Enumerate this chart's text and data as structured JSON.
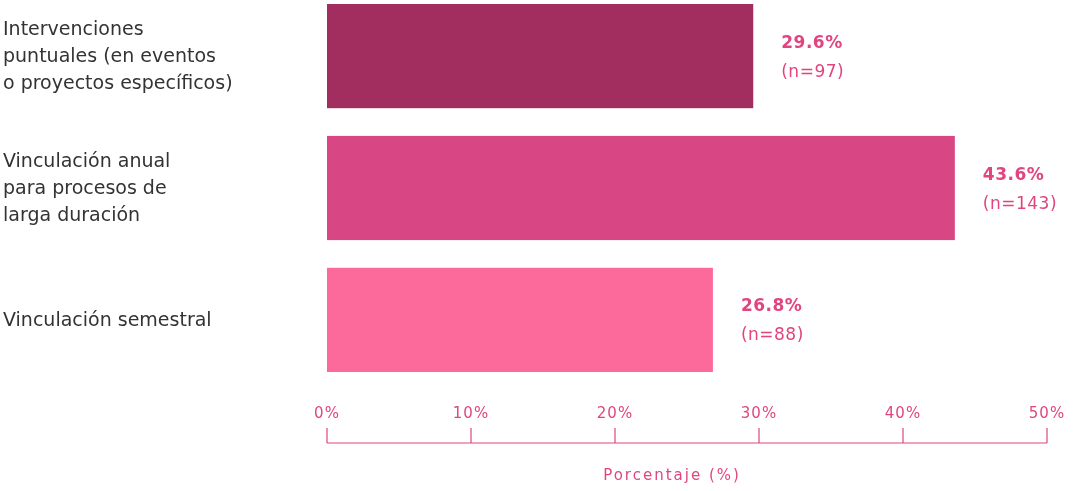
{
  "chart_data": {
    "type": "bar",
    "orientation": "horizontal",
    "xlabel": "Porcentaje (%)",
    "categories": [
      "Intervenciones\npuntuales (en eventos\no proyectos específicos)",
      "Vinculación anual\npara procesos de\nlarga duración",
      "Vinculación semestral"
    ],
    "values": [
      29.6,
      43.6,
      26.8
    ],
    "colors": [
      "#a12e5f",
      "#d84683",
      "#fb6a9a"
    ],
    "value_labels": [
      "29.6%\n(n=97)",
      "43.6%\n(n=143)",
      "26.8%\n(n=88)"
    ],
    "xlim": [
      0,
      50
    ],
    "xticks": [
      {
        "value": 0,
        "label": "0%"
      },
      {
        "value": 10,
        "label": "10%"
      },
      {
        "value": 20,
        "label": "20%"
      },
      {
        "value": 30,
        "label": "30%"
      },
      {
        "value": 40,
        "label": "40%"
      },
      {
        "value": 50,
        "label": "50%"
      }
    ],
    "grid": false
  }
}
